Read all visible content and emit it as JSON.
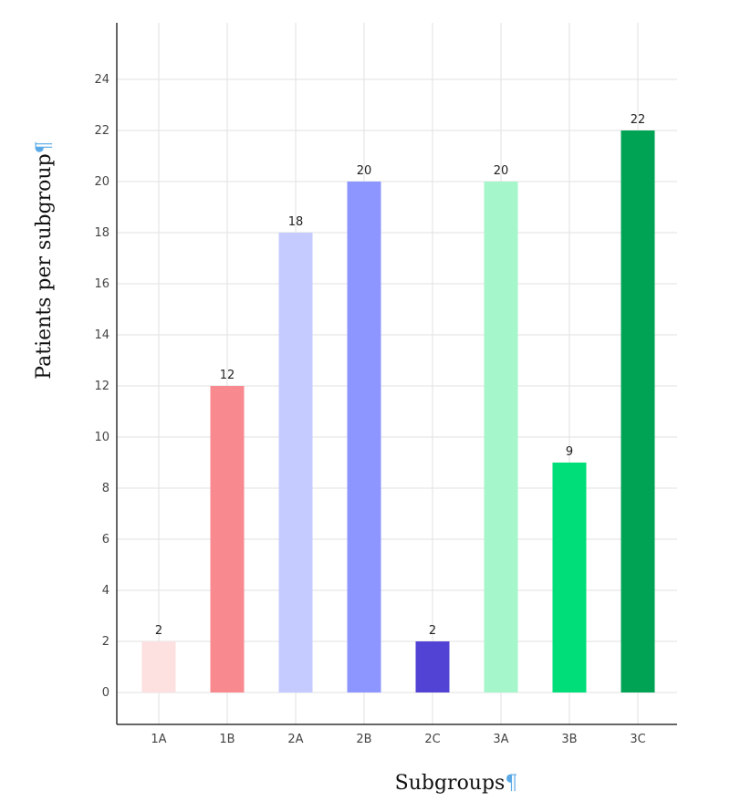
{
  "chart_data": {
    "type": "bar",
    "categories": [
      "1A",
      "1B",
      "2A",
      "2B",
      "2C",
      "3A",
      "3B",
      "3C"
    ],
    "values": [
      2,
      12,
      18,
      20,
      2,
      20,
      9,
      22
    ],
    "data_labels": [
      "2",
      "12",
      "18",
      "20",
      "2",
      "20",
      "9",
      "22"
    ],
    "colors": [
      "#fde0e0",
      "#f88a8f",
      "#c5cbff",
      "#8d96ff",
      "#5243d4",
      "#a6f6cc",
      "#00de7a",
      "#00a353"
    ],
    "xlabel": "Subgroups",
    "ylabel": "Patients per subgroup",
    "xlabel_mark": "¶",
    "ylabel_mark": "¶",
    "yticks": [
      0,
      2,
      4,
      6,
      8,
      10,
      12,
      14,
      16,
      18,
      20,
      22,
      24
    ],
    "ytick_labels": [
      "0",
      "2",
      "4",
      "6",
      "8",
      "10",
      "12",
      "14",
      "16",
      "18",
      "20",
      "22",
      "24"
    ],
    "ylim": [
      -1.2,
      26.2
    ],
    "grid": true,
    "legend": "none"
  }
}
